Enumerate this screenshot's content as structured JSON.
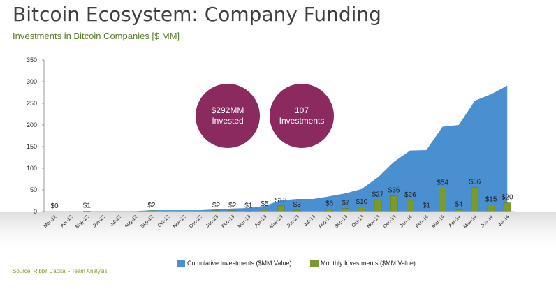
{
  "title": "Bitcoin Ecosystem: Company Funding",
  "subtitle": "Investments in Bitcoin Companies [$ MM]",
  "source": "Source: Ribbit Capital - Team Analysis",
  "bubbles": [
    {
      "line1": "$292MM",
      "line2": "Invested"
    },
    {
      "line1": "107",
      "line2": "Investments"
    }
  ],
  "colors": {
    "area": "#4a8fd0",
    "bar": "#7a9a2e",
    "bubble": "#8b2a5f"
  },
  "chart_data": {
    "type": "bar",
    "title": "Investments in Bitcoin Companies [$ MM]",
    "categories": [
      "Mar-12",
      "Apr-12",
      "May-12",
      "Jun-12",
      "Jul-12",
      "Aug-12",
      "Sep-12",
      "Oct-12",
      "Nov-12",
      "Dec-12",
      "Jan-13",
      "Feb-13",
      "Mar-13",
      "Apr-13",
      "May-13",
      "Jun-13",
      "Jul-13",
      "Aug-13",
      "Sep-13",
      "Oct-13",
      "Nov-13",
      "Dec-13",
      "Jan-14",
      "Feb-14",
      "Mar-14",
      "Apr-14",
      "May-14",
      "Jun-14",
      "Jul-14"
    ],
    "ylim": [
      0,
      350
    ],
    "yticks": [
      0,
      50,
      100,
      150,
      200,
      250,
      300,
      350
    ],
    "series": [
      {
        "name": "Cumulative Investments ($MM Value)",
        "type": "area",
        "values": [
          0,
          0,
          1,
          1,
          1,
          1,
          3,
          3,
          3,
          3,
          5,
          7,
          8,
          13,
          26,
          29,
          29,
          35,
          42,
          52,
          79,
          115,
          141,
          142,
          196,
          200,
          256,
          271,
          291
        ]
      },
      {
        "name": "Monthly Investments ($MM Value)",
        "type": "bar",
        "values": [
          0,
          0,
          1,
          0,
          0,
          0,
          2,
          0,
          0,
          0,
          2,
          2,
          1,
          5,
          13,
          3,
          0,
          6,
          7,
          10,
          27,
          36,
          26,
          1,
          54,
          4,
          56,
          15,
          20
        ],
        "labels": [
          "$0",
          "",
          "$1",
          "",
          "",
          "",
          "$2",
          "",
          "",
          "",
          "$2",
          "$2",
          "$1",
          "$5",
          "$13",
          "$3",
          "",
          "$6",
          "$7",
          "$10",
          "$27",
          "$36",
          "$26",
          "$1",
          "$54",
          "$4",
          "$56",
          "$15",
          "$20"
        ]
      }
    ]
  }
}
